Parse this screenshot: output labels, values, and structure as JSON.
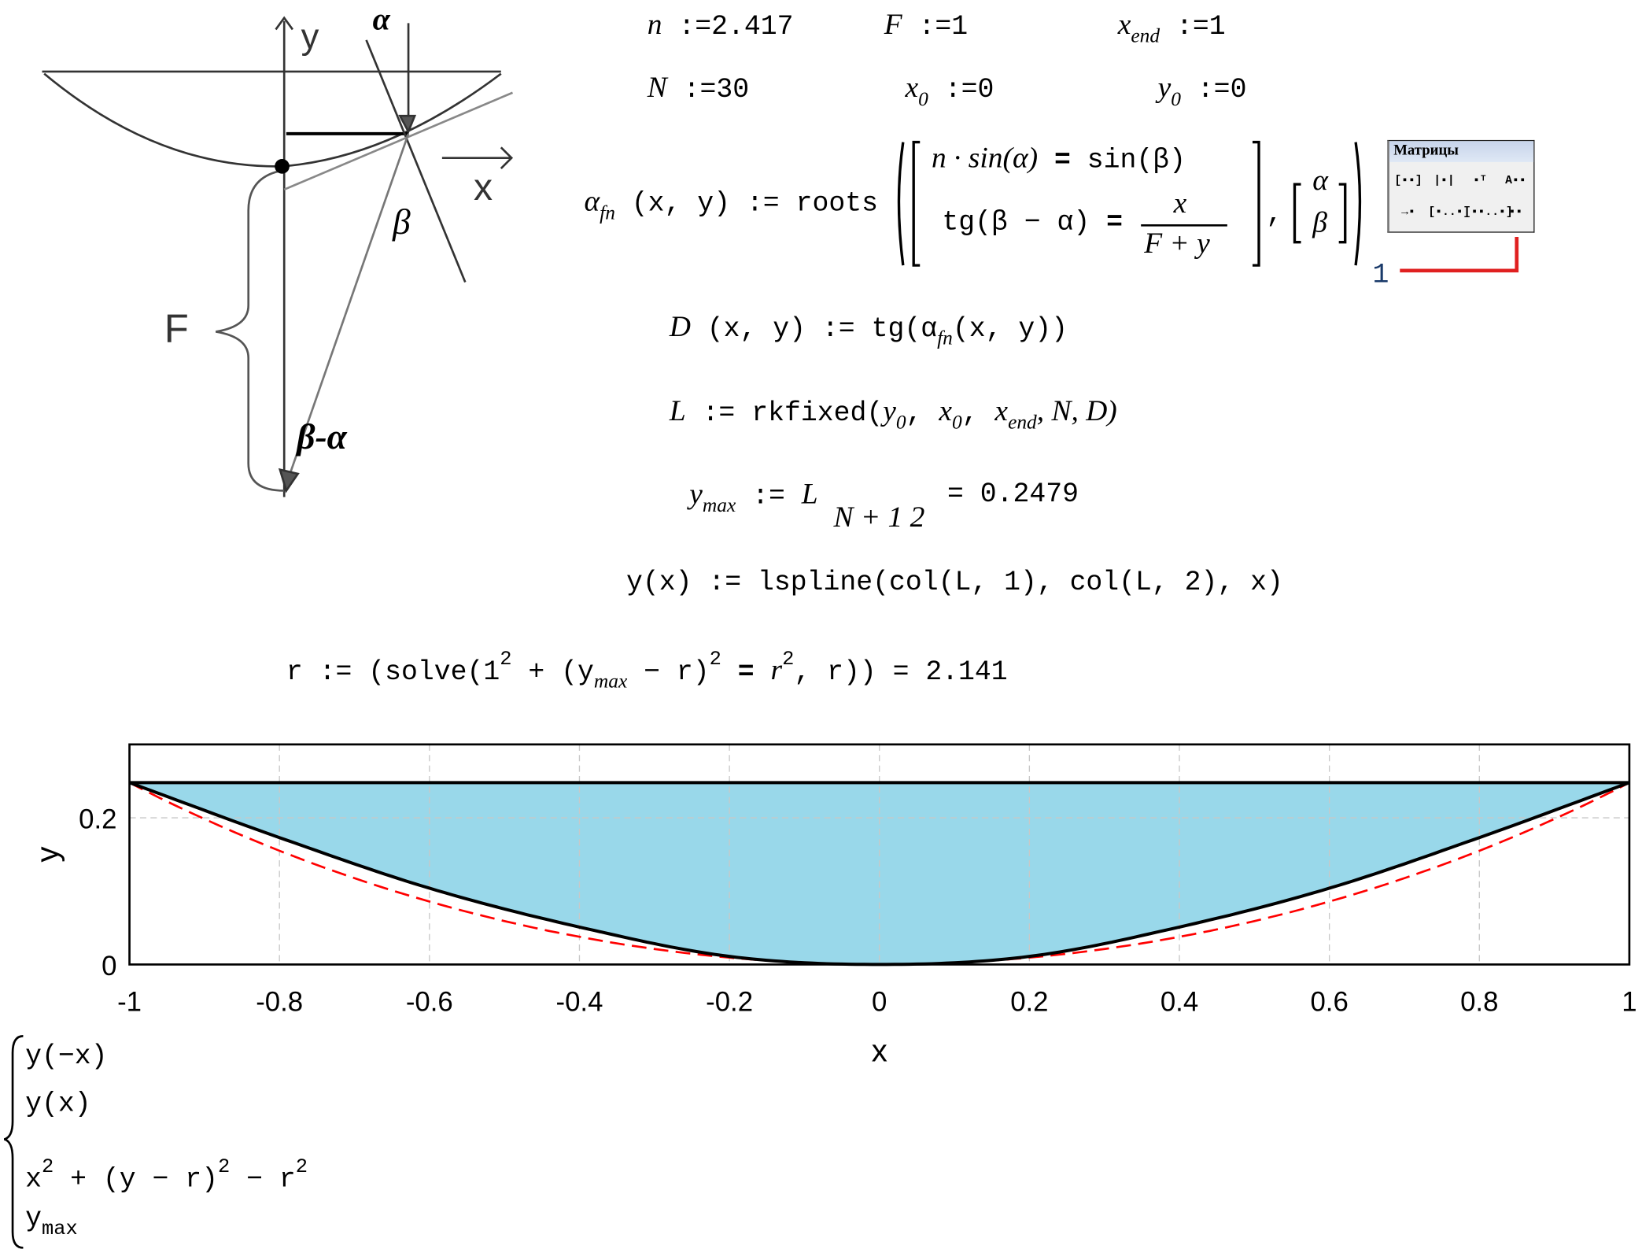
{
  "diagram": {
    "labels": {
      "y": "y",
      "alpha": "α",
      "x": "x",
      "beta": "β",
      "F": "F",
      "beta_minus_alpha": "β-α"
    }
  },
  "defs": {
    "n": {
      "name": "n",
      "op": ":=",
      "value": "2.417"
    },
    "F": {
      "name": "F",
      "op": ":=",
      "value": "1"
    },
    "x_end": {
      "name": "x",
      "sub": "end",
      "op": ":=",
      "value": "1"
    },
    "N": {
      "name": "N",
      "op": ":=",
      "value": "30"
    },
    "x0": {
      "name": "x",
      "sub": "0",
      "op": ":=",
      "value": "0"
    },
    "y0": {
      "name": "y",
      "sub": "0",
      "op": ":=",
      "value": "0"
    }
  },
  "alpha_fn": {
    "name": "α",
    "sub": "fn",
    "args": "(x, y)",
    "op": ":=",
    "func": "roots",
    "eq1_l": "n · sin(α)",
    "eq1_eq": "=",
    "eq1_r": "sin(β)",
    "eq2_l": "tg(β − α)",
    "eq2_eq": "=",
    "eq2_num": "x",
    "eq2_den": "F + y",
    "vars": [
      "α",
      "β"
    ]
  },
  "D": {
    "text": "D",
    "args": "(x, y)",
    "op": ":=",
    "body": "tg(α",
    "sub": "fn",
    "tail": "(x, y))"
  },
  "L": {
    "name": "L",
    "op": ":=",
    "func": "rkfixed",
    "a1": "y",
    "a1s": "0",
    "a2": "x",
    "a2s": "0",
    "a3": "x",
    "a3s": "end",
    "rest": ", N, D)"
  },
  "ymax": {
    "name": "y",
    "sub": "max",
    "op": ":=",
    "L": "L",
    "index": "N + 1 2",
    "result": "= 0.2479"
  },
  "yx": {
    "text": "y(x) := lspline(col(L, 1), col(L, 2), x)"
  },
  "r": {
    "pre": "r := (solve(1",
    "e1": "2",
    "mid": " + (y",
    "sub": "max",
    "mid2": " − r)",
    "e2": "2",
    "eqs": " = ",
    "rr": "r",
    "e3": "2",
    "tail": ", r)) = 2.141"
  },
  "toolbar": {
    "title": "Матрицы",
    "buttons": [
      "[▪▪]",
      "|▪|",
      "▪ᵀ",
      "A▪▪",
      "→▪",
      "[▪..▪]",
      "[▪▪..▪]",
      "▪▪"
    ],
    "placeholder_index": "1"
  },
  "chart_data": {
    "type": "line",
    "xlabel": "x",
    "ylabel": "y",
    "xlim": [
      -1,
      1
    ],
    "ylim": [
      0,
      0.3
    ],
    "xticks": [
      "-1",
      "-0.8",
      "-0.6",
      "-0.4",
      "-0.2",
      "0",
      "0.2",
      "0.4",
      "0.6",
      "0.8",
      "1"
    ],
    "yticks": [
      "0",
      "0.2"
    ],
    "grid": true,
    "fill_color": "#99d8ea",
    "series": [
      {
        "expr": "y(−x)",
        "color": "#000000",
        "style": "solid",
        "x": [
          -1,
          -0.8,
          -0.6,
          -0.4,
          -0.2,
          0
        ],
        "y": [
          0.248,
          0.173,
          0.104,
          0.051,
          0.011,
          0
        ]
      },
      {
        "expr": "y(x)",
        "color": "#000000",
        "style": "solid",
        "x": [
          0,
          0.2,
          0.4,
          0.6,
          0.8,
          1
        ],
        "y": [
          0,
          0.011,
          0.051,
          0.104,
          0.173,
          0.248
        ]
      },
      {
        "expr": "x² + (y − r)² − r²",
        "color": "#ff0000",
        "style": "dashed",
        "r": 2.141
      },
      {
        "expr": "y_max",
        "color": "#000000",
        "style": "solid",
        "y": 0.2479
      }
    ]
  },
  "legend": {
    "l1": "y(−x)",
    "l2": "y(x)",
    "l3a": "x",
    "l3b": " + (y − r)",
    "l3c": " − r",
    "sq": "2",
    "l4": "y",
    "l4s": "max"
  }
}
